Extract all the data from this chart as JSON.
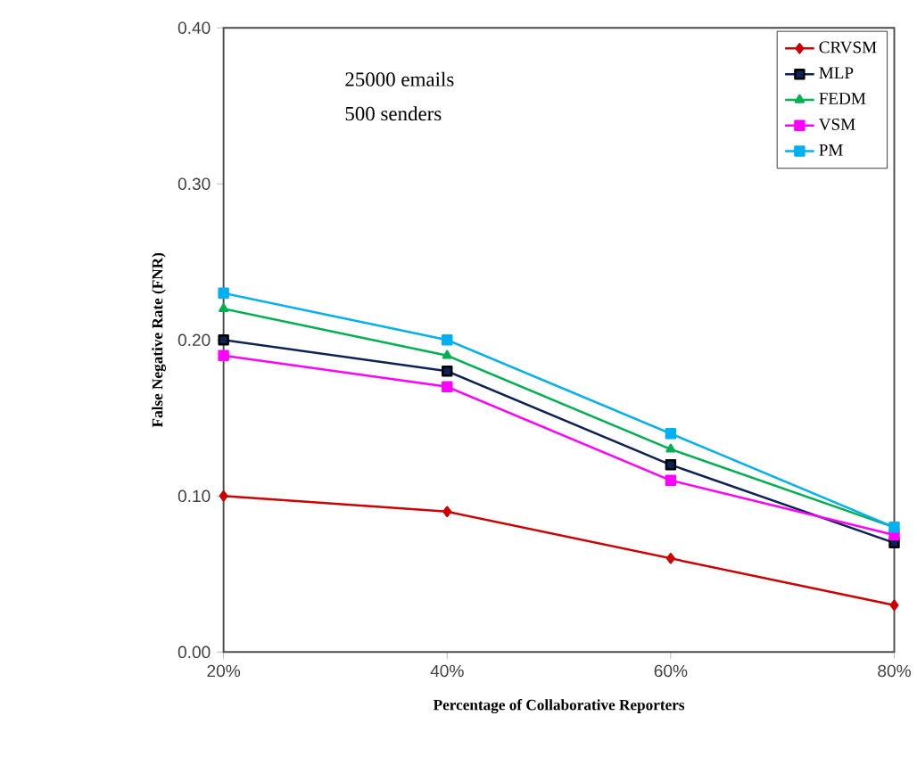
{
  "chart_data": {
    "type": "line",
    "xlabel": "Percentage of Collaborative Reporters",
    "ylabel": "False Negative Rate (FNR)",
    "categories": [
      "20%",
      "40%",
      "60%",
      "80%"
    ],
    "series": [
      {
        "name": "CRVSM",
        "color": "#cc0000",
        "marker": "diamond",
        "values": [
          0.1,
          0.09,
          0.06,
          0.03
        ]
      },
      {
        "name": "MLP",
        "color": "#0d2357",
        "marker": "square",
        "values": [
          0.2,
          0.18,
          0.12,
          0.07
        ]
      },
      {
        "name": "FEDM",
        "color": "#00b050",
        "marker": "triangle",
        "values": [
          0.22,
          0.19,
          0.13,
          0.08
        ]
      },
      {
        "name": "VSM",
        "color": "#ff00ff",
        "marker": "square",
        "values": [
          0.19,
          0.17,
          0.11,
          0.075
        ]
      },
      {
        "name": "PM",
        "color": "#00b0f0",
        "marker": "square",
        "values": [
          0.23,
          0.2,
          0.14,
          0.08
        ]
      }
    ],
    "ylim": [
      0,
      0.4
    ],
    "yticks": [
      {
        "value": 0,
        "label": "0.00"
      },
      {
        "value": 0.1,
        "label": "0.10"
      },
      {
        "value": 0.2,
        "label": "0.20"
      },
      {
        "value": 0.3,
        "label": "0.30"
      },
      {
        "value": 0.4,
        "label": "0.40"
      }
    ],
    "annotations": [
      "25000 emails",
      "500 senders"
    ],
    "legend": "top right",
    "grid": false,
    "line_style": "solid"
  }
}
